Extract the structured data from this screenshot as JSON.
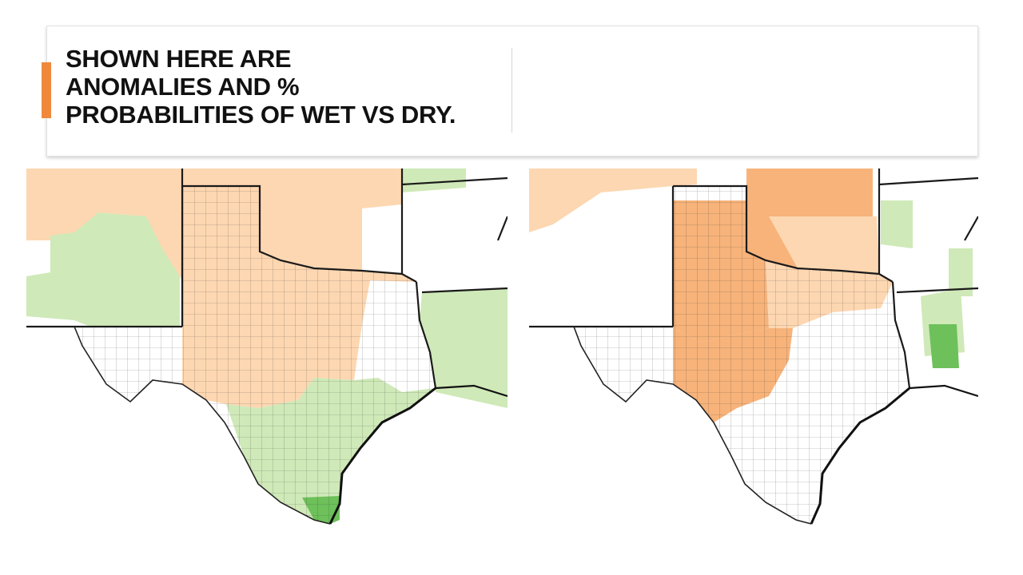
{
  "slide": {
    "title_lines": [
      "SHOWN HERE ARE",
      "ANOMALIES AND %",
      "PROBABILITIES OF WET VS DRY."
    ]
  },
  "colors": {
    "accent": "#f0883c",
    "dry_light": "#fdd7b1",
    "dry_medium": "#f7b37a",
    "dry_strong": "#f39a45",
    "wet_light": "#cfe9b8",
    "wet_medium": "#a9d98a",
    "wet_strong": "#6dc05a",
    "neutral": "#ffffff",
    "boundary": "#1a1a1a"
  },
  "maps": [
    {
      "id": "left-map",
      "region": "Texas / Southern Plains",
      "content": "anomalies"
    },
    {
      "id": "right-map",
      "region": "Texas / Southern Plains",
      "content": "probabilities"
    }
  ]
}
